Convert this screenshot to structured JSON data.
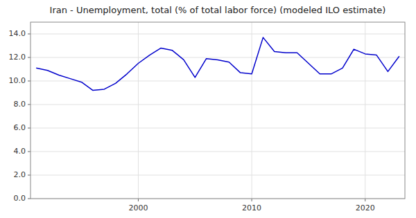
{
  "chart_data": {
    "type": "line",
    "title": "Iran - Unemployment, total (% of total labor force) (modeled ILO estimate)",
    "x": [
      1991,
      1992,
      1993,
      1994,
      1995,
      1996,
      1997,
      1998,
      1999,
      2000,
      2001,
      2002,
      2003,
      2004,
      2005,
      2006,
      2007,
      2008,
      2009,
      2010,
      2011,
      2012,
      2013,
      2014,
      2015,
      2016,
      2017,
      2018,
      2019,
      2020,
      2021,
      2022,
      2023
    ],
    "values": [
      11.1,
      10.9,
      10.5,
      10.2,
      9.9,
      9.2,
      9.3,
      9.8,
      10.6,
      11.5,
      12.2,
      12.8,
      12.6,
      11.8,
      10.3,
      11.9,
      11.8,
      11.6,
      10.7,
      10.6,
      13.7,
      12.5,
      12.4,
      12.4,
      11.5,
      10.6,
      10.6,
      11.1,
      12.7,
      12.3,
      12.2,
      10.8,
      12.1
    ],
    "color": "#0000cc",
    "xlim": [
      1990.5,
      2023.5
    ],
    "xticks": [
      2000,
      2010,
      2020
    ],
    "ylim": [
      0,
      15.0
    ],
    "yticks": [
      {
        "value": 0.0,
        "label": "0.0"
      },
      {
        "value": 2.0,
        "label": "2.0"
      },
      {
        "value": 4.0,
        "label": "4.0"
      },
      {
        "value": 6.0,
        "label": "6.0"
      },
      {
        "value": 8.0,
        "label": "8.0"
      },
      {
        "value": 10.0,
        "label": "10.0"
      },
      {
        "value": 12.0,
        "label": "12.0"
      },
      {
        "value": 14.0,
        "label": "14.0"
      }
    ],
    "grid": true
  }
}
